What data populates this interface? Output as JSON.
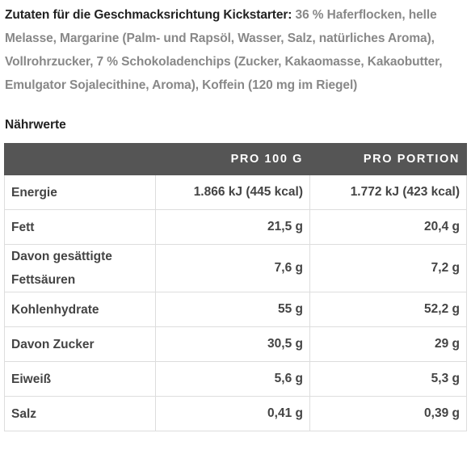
{
  "ingredients": {
    "lead": "Zutaten für die Geschmacksrichtung Kickstarter:",
    "text": " 36 % Haferflocken, helle Melasse, Margarine (Palm- und Rapsöl, Wasser, Salz, natürliches Aroma), Vollrohrzucker, 7 % Schokoladenchips (Zucker, Kakaomasse, Kakaobutter, Emulgator Sojalecithine, Aroma), Koffein (120 mg im Riegel)"
  },
  "nutrition": {
    "title": "Nährwerte",
    "headers": [
      "",
      "PRO 100 G",
      "PRO PORTION"
    ],
    "rows": [
      {
        "label": "Energie",
        "per100": "1.866 kJ (445 kcal)",
        "portion": "1.772 kJ (423 kcal)"
      },
      {
        "label": "Fett",
        "per100": "21,5 g",
        "portion": "20,4 g"
      },
      {
        "label": "Davon gesättigte Fettsäuren",
        "per100": "7,6 g",
        "portion": "7,2 g"
      },
      {
        "label": "Kohlenhydrate",
        "per100": "55 g",
        "portion": "52,2 g"
      },
      {
        "label": "Davon Zucker",
        "per100": "30,5 g",
        "portion": "29 g"
      },
      {
        "label": "Eiweiß",
        "per100": "5,6 g",
        "portion": "5,3 g"
      },
      {
        "label": "Salz",
        "per100": "0,41 g",
        "portion": "0,39 g"
      }
    ]
  },
  "colors": {
    "header_bg": "#555555",
    "header_text": "#ffffff",
    "body_text": "#444444",
    "muted_text": "#888888",
    "border": "#dddddd"
  }
}
